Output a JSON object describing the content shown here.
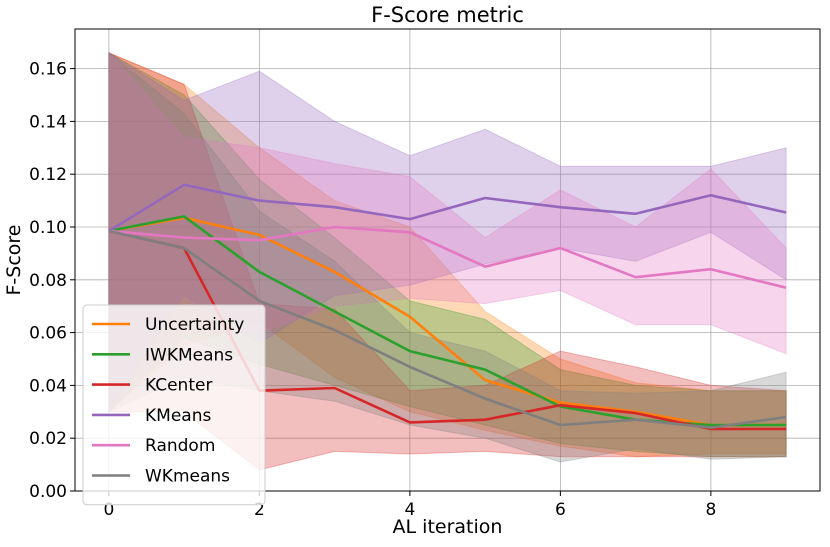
{
  "chart_data": {
    "type": "line",
    "title": "F-Score metric",
    "xlabel": "AL iteration",
    "ylabel": "F-Score",
    "xlim": [
      -0.45,
      9.45
    ],
    "ylim": [
      0.0,
      0.175
    ],
    "xticks": [
      0,
      2,
      4,
      6,
      8
    ],
    "xtick_labels": [
      "0",
      "2",
      "4",
      "6",
      "8"
    ],
    "yticks": [
      0.0,
      0.02,
      0.04,
      0.06,
      0.08,
      0.1,
      0.12,
      0.14,
      0.16
    ],
    "ytick_labels": [
      "0.00",
      "0.02",
      "0.04",
      "0.06",
      "0.08",
      "0.10",
      "0.12",
      "0.14",
      "0.16"
    ],
    "grid": true,
    "legend_position": "lower-left",
    "x": [
      0,
      1,
      2,
      3,
      4,
      5,
      6,
      7,
      8,
      9
    ],
    "series": [
      {
        "name": "Uncertainty",
        "color": "#ff7f0e",
        "values": [
          0.0985,
          0.1035,
          0.097,
          0.083,
          0.066,
          0.042,
          0.0335,
          0.03,
          0.025,
          0.025
        ],
        "upper": [
          0.166,
          0.154,
          0.13,
          0.11,
          0.1,
          0.068,
          0.05,
          0.041,
          0.038,
          0.038
        ],
        "lower": [
          0.03,
          0.055,
          0.064,
          0.043,
          0.03,
          0.023,
          0.017,
          0.013,
          0.014,
          0.014
        ]
      },
      {
        "name": "IWKMeans",
        "color": "#2ca02c",
        "values": [
          0.0985,
          0.104,
          0.083,
          0.068,
          0.053,
          0.046,
          0.032,
          0.027,
          0.025,
          0.025
        ],
        "upper": [
          0.166,
          0.15,
          0.118,
          0.096,
          0.072,
          0.065,
          0.046,
          0.04,
          0.038,
          0.038
        ],
        "lower": [
          0.03,
          0.058,
          0.048,
          0.04,
          0.032,
          0.025,
          0.018,
          0.015,
          0.013,
          0.013
        ]
      },
      {
        "name": "KCenter",
        "color": "#d62728",
        "values": [
          0.0985,
          0.092,
          0.038,
          0.039,
          0.026,
          0.027,
          0.0325,
          0.0295,
          0.0235,
          0.0235
        ],
        "upper": [
          0.166,
          0.154,
          0.071,
          0.069,
          0.038,
          0.04,
          0.053,
          0.047,
          0.04,
          0.038
        ],
        "lower": [
          0.03,
          0.03,
          0.008,
          0.015,
          0.014,
          0.015,
          0.013,
          0.013,
          0.013,
          0.013
        ]
      },
      {
        "name": "KMeans",
        "color": "#9467bd",
        "values": [
          0.0985,
          0.116,
          0.11,
          0.1075,
          0.103,
          0.111,
          0.1075,
          0.105,
          0.112,
          0.1055
        ],
        "upper": [
          0.166,
          0.148,
          0.159,
          0.14,
          0.127,
          0.137,
          0.123,
          0.123,
          0.123,
          0.13
        ],
        "lower": [
          0.03,
          0.074,
          0.056,
          0.074,
          0.078,
          0.086,
          0.092,
          0.087,
          0.098,
          0.08
        ]
      },
      {
        "name": "Random",
        "color": "#e377c2",
        "values": [
          0.0985,
          0.096,
          0.095,
          0.1,
          0.098,
          0.085,
          0.092,
          0.081,
          0.084,
          0.077
        ],
        "upper": [
          0.166,
          0.134,
          0.13,
          0.124,
          0.119,
          0.096,
          0.114,
          0.1,
          0.122,
          0.092
        ],
        "lower": [
          0.03,
          0.06,
          0.06,
          0.07,
          0.073,
          0.071,
          0.076,
          0.063,
          0.063,
          0.052
        ]
      },
      {
        "name": "WKmeans",
        "color": "#7f7f7f",
        "values": [
          0.0985,
          0.092,
          0.072,
          0.061,
          0.047,
          0.035,
          0.025,
          0.027,
          0.024,
          0.028
        ],
        "upper": [
          0.166,
          0.143,
          0.106,
          0.087,
          0.06,
          0.053,
          0.038,
          0.037,
          0.038,
          0.045
        ],
        "lower": [
          0.03,
          0.043,
          0.038,
          0.034,
          0.025,
          0.02,
          0.011,
          0.016,
          0.012,
          0.013
        ]
      }
    ]
  }
}
